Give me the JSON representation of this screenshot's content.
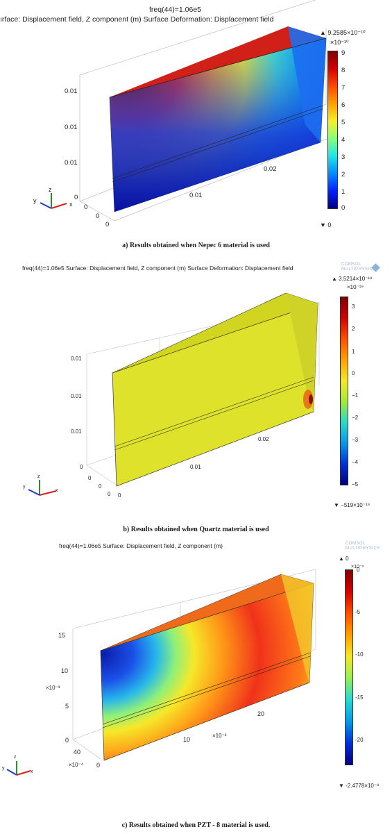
{
  "panels": [
    {
      "id": "a",
      "freq": "freq(44)=1.06e5",
      "plot_title": "ırface: Displacement field, Z component (m)   Surface Deformation: Displacement field",
      "max_label": "9.2585×10⁻¹⁰",
      "exp_label": "×10⁻¹⁰",
      "min_label": "0",
      "cbar_ticks": [
        "9",
        "8",
        "7",
        "6",
        "5",
        "4",
        "3",
        "2",
        "1",
        "0"
      ],
      "z_ticks": [
        "0.01",
        "0.01",
        "0.01",
        "0"
      ],
      "x_ticks": [
        "0.02",
        "0.01"
      ],
      "y_ticks": [
        "0",
        "0",
        "0"
      ],
      "triad": {
        "z": "z",
        "y": "y",
        "x": "x"
      },
      "caption": "a) Results obtained when Nepec 6 material is used"
    },
    {
      "id": "b",
      "plot_title": "freq(44)=1.06e5  Surface: Displacement field, Z component (m)   Surface Deformation: Displacement field",
      "max_label": "3.5214×10⁻¹⁹",
      "exp_label": "×10⁻¹⁹",
      "min_label": "−519×10⁻¹⁹",
      "cbar_ticks": [
        "3",
        "2",
        "1",
        "0",
        "−1",
        "−2",
        "−3",
        "−4",
        "−5"
      ],
      "z_ticks": [
        "0.01",
        "0.01",
        "0.01",
        "0"
      ],
      "x_ticks": [
        "0.02",
        "0.01"
      ],
      "y_ticks": [
        "0",
        "0",
        "0",
        "0"
      ],
      "logo": [
        "COMSOL",
        "MULTIPHYSICS"
      ],
      "triad": {
        "z": "z",
        "y": "y",
        "x": "x"
      },
      "caption": "b) Results obtained when Quartz material is used"
    },
    {
      "id": "c",
      "plot_title": "freq(44)=1.06e5   Surface: Displacement field, Z component (m)",
      "max_label": "0",
      "exp_label": "×10⁻⁹",
      "min_label": "-2.4778×10⁻⁸",
      "cbar_ticks": [
        "0",
        "-5",
        "-10",
        "-15",
        "-20"
      ],
      "z_ticks": [
        "15",
        "10",
        "×10⁻³",
        "5",
        "0"
      ],
      "x_ticks": [
        "20",
        "10",
        "×10⁻³"
      ],
      "y_ticks": [
        "40",
        "×10⁻⁴",
        "0"
      ],
      "logo": [
        "COMSOL",
        "MULTIPHYSICS"
      ],
      "triad": {
        "z": "z",
        "y": "y",
        "x": "x"
      },
      "caption": "c) Results obtained when PZT - 8 material is used."
    }
  ],
  "colors": {
    "jet_top": "#7f0000",
    "jet_bottom": "#00007f",
    "quartz_face": "#dfe22a"
  }
}
